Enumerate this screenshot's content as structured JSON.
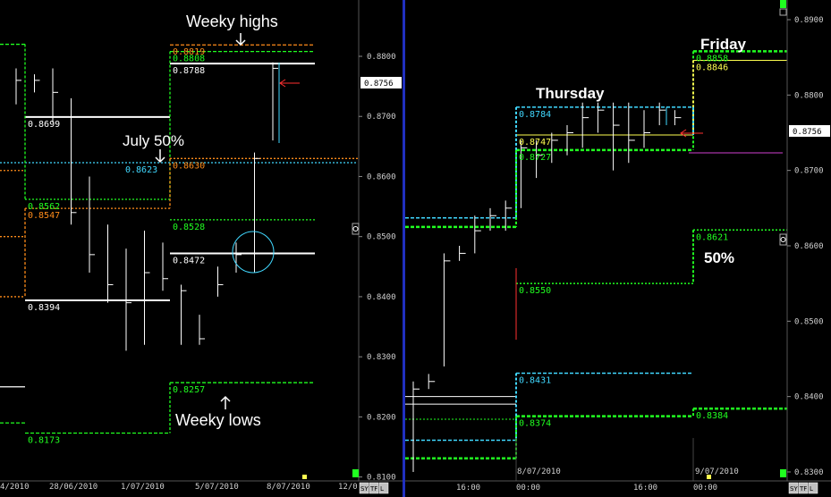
{
  "colors": {
    "background": "#000000",
    "axis_text": "#d0d0d0",
    "grid": "#3a3a3a",
    "separator": "#2030c0",
    "cursor_box_bg": "#ffffff",
    "cursor_box_text": "#000000",
    "green": "#20ff20",
    "orange": "#ff8c1a",
    "cyan": "#40d8ff",
    "white": "#ffffff",
    "red": "#ff3030",
    "yellow": "#ffff50",
    "magenta": "#d040d0",
    "lightgreen": "#3fd03f"
  },
  "toolbar": {
    "left_buttons": [
      "SY",
      "TF",
      "L"
    ],
    "right_buttons": [
      "SY",
      "TF",
      "L"
    ]
  },
  "chart_data": [
    {
      "type": "ohlc",
      "panel": "left (daily)",
      "title": "",
      "ylim": [
        0.81,
        0.89
      ],
      "y_ticks": [
        "0.8100",
        "0.8200",
        "0.8300",
        "0.8400",
        "0.8500",
        "0.8600",
        "0.8700",
        "0.8800"
      ],
      "x_ticks": [
        "4/2010",
        "28/06/2010",
        "1/07/2010",
        "5/07/2010",
        "8/07/2010",
        "12/0"
      ],
      "current_price": "0.8756",
      "bars": [
        {
          "x": 0,
          "high": 0.878,
          "low": 0.872,
          "close": 0.876
        },
        {
          "x": 1,
          "high": 0.877,
          "low": 0.874,
          "close": 0.876
        },
        {
          "x": 2,
          "high": 0.878,
          "low": 0.869,
          "close": 0.874
        },
        {
          "x": 3,
          "high": 0.873,
          "low": 0.852,
          "close": 0.854
        },
        {
          "x": 4,
          "high": 0.86,
          "low": 0.844,
          "close": 0.847
        },
        {
          "x": 5,
          "high": 0.852,
          "low": 0.839,
          "close": 0.842
        },
        {
          "x": 6,
          "high": 0.848,
          "low": 0.831,
          "close": 0.839
        },
        {
          "x": 7,
          "high": 0.851,
          "low": 0.832,
          "close": 0.844
        },
        {
          "x": 8,
          "high": 0.849,
          "low": 0.841,
          "close": 0.843
        },
        {
          "x": 9,
          "high": 0.842,
          "low": 0.832,
          "close": 0.841
        },
        {
          "x": 10,
          "high": 0.837,
          "low": 0.832,
          "close": 0.833
        },
        {
          "x": 11,
          "high": 0.845,
          "low": 0.84,
          "close": 0.842
        },
        {
          "x": 12,
          "high": 0.849,
          "low": 0.844,
          "close": 0.847
        },
        {
          "x": 13,
          "high": 0.864,
          "low": 0.844,
          "close": 0.863
        },
        {
          "x": 14,
          "high": 0.879,
          "low": 0.866,
          "close": 0.878
        }
      ],
      "levels": [
        {
          "label": "0.8819",
          "value": 0.8819,
          "color": "orange",
          "style": "dash",
          "text_color": "orange"
        },
        {
          "label": "0.8808",
          "value": 0.8808,
          "color": "green",
          "style": "dash",
          "text_color": "green"
        },
        {
          "label": "0.8788",
          "value": 0.8788,
          "color": "white",
          "style": "solid",
          "text_color": "white"
        },
        {
          "label": "0.8699",
          "value": 0.8699,
          "color": "white",
          "style": "solid",
          "text_color": "white"
        },
        {
          "label": "0.8630",
          "value": 0.863,
          "color": "orange",
          "style": "dot",
          "text_color": "orange"
        },
        {
          "label": "0.8623",
          "value": 0.8623,
          "color": "cyan",
          "style": "dot",
          "text_color": "cyan"
        },
        {
          "label": "0.8562",
          "value": 0.8562,
          "color": "green",
          "style": "dot",
          "text_color": "green"
        },
        {
          "label": "0.8547",
          "value": 0.8547,
          "color": "orange",
          "style": "dot",
          "text_color": "orange"
        },
        {
          "label": "0.8528",
          "value": 0.8528,
          "color": "green",
          "style": "dot",
          "text_color": "green"
        },
        {
          "label": "0.8472",
          "value": 0.8472,
          "color": "white",
          "style": "solid",
          "text_color": "white"
        },
        {
          "label": "0.8394",
          "value": 0.8394,
          "color": "white",
          "style": "solid",
          "text_color": "white"
        },
        {
          "label": "0.8257",
          "value": 0.8257,
          "color": "green",
          "style": "dash",
          "text_color": "green"
        },
        {
          "label": "0.8173",
          "value": 0.8173,
          "color": "green",
          "style": "dash",
          "text_color": "green"
        }
      ],
      "annotations": [
        "Weeky highs",
        "July 50%",
        "Weeky lows"
      ]
    },
    {
      "type": "ohlc",
      "panel": "right (intraday)",
      "title": "",
      "ylim": [
        0.83,
        0.8915
      ],
      "y_ticks": [
        "0.8300",
        "0.8400",
        "0.8500",
        "0.8600",
        "0.8700",
        "0.8800",
        "0.8900"
      ],
      "x_ticks": [
        "16:00",
        "00:00",
        "16:00",
        "00:00"
      ],
      "date_labels": [
        "8/07/2010",
        "9/07/2010"
      ],
      "current_price": "0.8756",
      "bars": [
        {
          "x": 0,
          "high": 0.842,
          "low": 0.83,
          "close": 0.841
        },
        {
          "x": 1,
          "high": 0.843,
          "low": 0.841,
          "close": 0.842
        },
        {
          "x": 2,
          "high": 0.859,
          "low": 0.844,
          "close": 0.858
        },
        {
          "x": 3,
          "high": 0.86,
          "low": 0.858,
          "close": 0.859
        },
        {
          "x": 4,
          "high": 0.864,
          "low": 0.859,
          "close": 0.862
        },
        {
          "x": 5,
          "high": 0.865,
          "low": 0.862,
          "close": 0.864
        },
        {
          "x": 6,
          "high": 0.866,
          "low": 0.862,
          "close": 0.865
        },
        {
          "x": 7,
          "high": 0.874,
          "low": 0.865,
          "close": 0.873
        },
        {
          "x": 8,
          "high": 0.874,
          "low": 0.869,
          "close": 0.872
        },
        {
          "x": 9,
          "high": 0.875,
          "low": 0.871,
          "close": 0.874
        },
        {
          "x": 10,
          "high": 0.876,
          "low": 0.872,
          "close": 0.875
        },
        {
          "x": 11,
          "high": 0.879,
          "low": 0.873,
          "close": 0.877
        },
        {
          "x": 12,
          "high": 0.879,
          "low": 0.875,
          "close": 0.878
        },
        {
          "x": 13,
          "high": 0.879,
          "low": 0.87,
          "close": 0.876
        },
        {
          "x": 14,
          "high": 0.879,
          "low": 0.871,
          "close": 0.874
        },
        {
          "x": 15,
          "high": 0.878,
          "low": 0.873,
          "close": 0.875
        },
        {
          "x": 16,
          "high": 0.879,
          "low": 0.876,
          "close": 0.878
        },
        {
          "x": 17,
          "high": 0.878,
          "low": 0.876,
          "close": 0.877
        }
      ],
      "levels": [
        {
          "label": "0.8858",
          "value": 0.8858,
          "color": "green",
          "style": "dash",
          "text_color": "green"
        },
        {
          "label": "0.8846",
          "value": 0.8846,
          "color": "yellow",
          "style": "solid",
          "text_color": "yellow"
        },
        {
          "label": "0.8784",
          "value": 0.8784,
          "color": "cyan",
          "style": "dash",
          "text_color": "cyan"
        },
        {
          "label": "0.8747",
          "value": 0.8747,
          "color": "yellow",
          "style": "solid",
          "text_color": "yellow"
        },
        {
          "label": "0.8727",
          "value": 0.8727,
          "color": "green",
          "style": "dash",
          "text_color": "green"
        },
        {
          "label": "0.8621",
          "value": 0.8621,
          "color": "green",
          "style": "dot",
          "text_color": "green"
        },
        {
          "label": "0.8550",
          "value": 0.855,
          "color": "green",
          "style": "dot",
          "text_color": "green"
        },
        {
          "label": "0.8431",
          "value": 0.8431,
          "color": "cyan",
          "style": "dash",
          "text_color": "cyan"
        },
        {
          "label": "0.8384",
          "value": 0.8384,
          "color": "green",
          "style": "dash",
          "text_color": "green"
        },
        {
          "label": "0.8374",
          "value": 0.8374,
          "color": "green",
          "style": "dash",
          "text_color": "green"
        }
      ],
      "annotations": [
        "Thursday",
        "Friday",
        "50%"
      ]
    }
  ]
}
